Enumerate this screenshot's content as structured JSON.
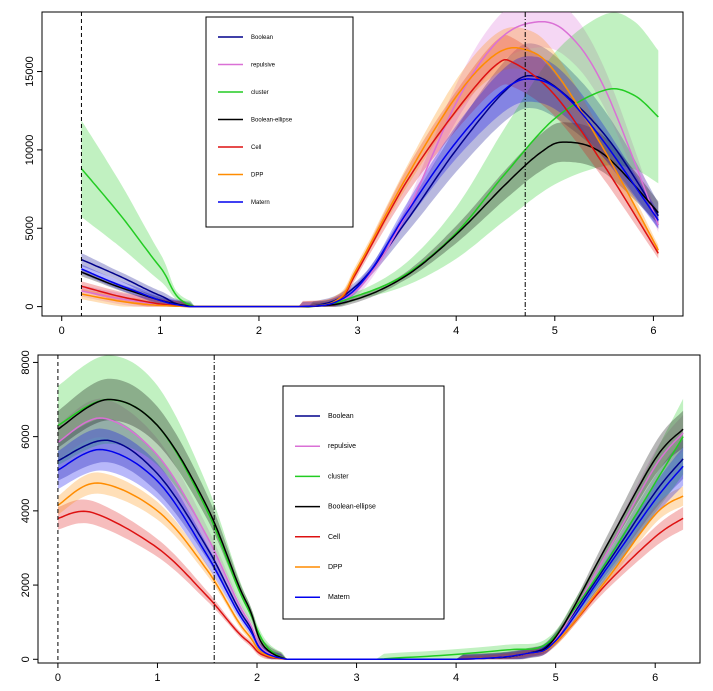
{
  "chart_data": [
    {
      "type": "line",
      "title": "",
      "xlabel": "",
      "ylabel": "",
      "xlim": [
        -0.2,
        6.3
      ],
      "ylim": [
        -600,
        18800
      ],
      "x_ticks": [
        0,
        1,
        2,
        3,
        4,
        5,
        6
      ],
      "x_tick_labels": [
        "0",
        "1",
        "2",
        "3",
        "4",
        "5",
        "6"
      ],
      "y_ticks": [
        0,
        5000,
        10000,
        15000
      ],
      "y_tick_labels": [
        "0",
        "5000",
        "10000",
        "15000"
      ],
      "vlines": [
        {
          "x": 0.2,
          "style": "dashed"
        },
        {
          "x": 4.7,
          "style": "dashdot"
        }
      ],
      "legend": {
        "placement": "top-center"
      },
      "series": [
        {
          "name": "Boolean",
          "color": "#00008B",
          "band": 0.14,
          "points": [
            [
              0.2,
              3000
            ],
            [
              0.6,
              1900
            ],
            [
              1.0,
              700
            ],
            [
              1.35,
              0
            ],
            [
              2.5,
              0
            ],
            [
              3.0,
              1400
            ],
            [
              3.5,
              5500
            ],
            [
              4.0,
              10000
            ],
            [
              4.5,
              13800
            ],
            [
              4.8,
              14700
            ],
            [
              5.2,
              13000
            ],
            [
              5.6,
              10200
            ],
            [
              6.05,
              5800
            ]
          ]
        },
        {
          "name": "repulsive",
          "color": "#DA70D6",
          "band": 0.09,
          "points": [
            [
              0.2,
              1000
            ],
            [
              0.7,
              400
            ],
            [
              1.3,
              0
            ],
            [
              2.4,
              0
            ],
            [
              2.8,
              300
            ],
            [
              3.1,
              1800
            ],
            [
              3.5,
              6000
            ],
            [
              4.0,
              13000
            ],
            [
              4.4,
              16800
            ],
            [
              4.75,
              18100
            ],
            [
              5.1,
              17600
            ],
            [
              5.5,
              14000
            ],
            [
              6.05,
              5200
            ]
          ]
        },
        {
          "name": "cluster",
          "color": "#22CC22",
          "band": 0.35,
          "points": [
            [
              0.2,
              8800
            ],
            [
              0.6,
              5800
            ],
            [
              1.0,
              2500
            ],
            [
              1.35,
              0
            ],
            [
              2.5,
              0
            ],
            [
              3.0,
              700
            ],
            [
              3.5,
              2100
            ],
            [
              4.0,
              4700
            ],
            [
              4.5,
              8500
            ],
            [
              5.0,
              12000
            ],
            [
              5.5,
              13800
            ],
            [
              5.8,
              13500
            ],
            [
              6.05,
              12100
            ]
          ]
        },
        {
          "name": "Boolean-ellipse",
          "color": "#000000",
          "band": 0.12,
          "points": [
            [
              0.2,
              2200
            ],
            [
              0.7,
              1000
            ],
            [
              1.35,
              0
            ],
            [
              2.5,
              0
            ],
            [
              3.0,
              500
            ],
            [
              3.5,
              2000
            ],
            [
              4.0,
              4600
            ],
            [
              4.5,
              7800
            ],
            [
              4.85,
              9800
            ],
            [
              5.1,
              10500
            ],
            [
              5.5,
              9700
            ],
            [
              6.05,
              6000
            ]
          ]
        },
        {
          "name": "Cell",
          "color": "#DD1111",
          "band": 0.1,
          "points": [
            [
              0.2,
              1300
            ],
            [
              0.7,
              500
            ],
            [
              1.3,
              0
            ],
            [
              2.4,
              0
            ],
            [
              2.8,
              400
            ],
            [
              3.0,
              2300
            ],
            [
              3.5,
              8000
            ],
            [
              4.0,
              12500
            ],
            [
              4.4,
              15400
            ],
            [
              4.6,
              15500
            ],
            [
              5.0,
              13500
            ],
            [
              5.5,
              9000
            ],
            [
              6.05,
              3400
            ]
          ]
        },
        {
          "name": "DPP",
          "color": "#FF8C00",
          "band": 0.08,
          "points": [
            [
              0.2,
              800
            ],
            [
              0.7,
              250
            ],
            [
              1.3,
              0
            ],
            [
              2.4,
              0
            ],
            [
              2.8,
              450
            ],
            [
              3.0,
              2500
            ],
            [
              3.5,
              8300
            ],
            [
              4.0,
              13400
            ],
            [
              4.4,
              16100
            ],
            [
              4.7,
              16400
            ],
            [
              5.0,
              15000
            ],
            [
              5.5,
              10000
            ],
            [
              6.05,
              3600
            ]
          ]
        },
        {
          "name": "Matern",
          "color": "#0000EE",
          "band": 0.1,
          "points": [
            [
              0.2,
              2400
            ],
            [
              0.7,
              1100
            ],
            [
              1.3,
              0
            ],
            [
              2.4,
              0
            ],
            [
              2.8,
              350
            ],
            [
              3.1,
              2000
            ],
            [
              3.5,
              6000
            ],
            [
              4.0,
              10500
            ],
            [
              4.5,
              13900
            ],
            [
              4.8,
              14500
            ],
            [
              5.1,
              13500
            ],
            [
              5.5,
              10500
            ],
            [
              6.05,
              5500
            ]
          ]
        }
      ]
    },
    {
      "type": "line",
      "title": "",
      "xlabel": "",
      "ylabel": "",
      "xlim": [
        -0.2,
        6.45
      ],
      "ylim": [
        -100,
        8200
      ],
      "x_ticks": [
        0,
        1,
        2,
        3,
        4,
        5,
        6
      ],
      "x_tick_labels": [
        "0",
        "1",
        "2",
        "3",
        "4",
        "5",
        "6"
      ],
      "y_ticks": [
        0,
        2000,
        4000,
        6000,
        8000
      ],
      "y_tick_labels": [
        "0",
        "2000",
        "4000",
        "6000",
        "8000"
      ],
      "vlines": [
        {
          "x": 0.0,
          "style": "dashed"
        },
        {
          "x": 1.57,
          "style": "dashdot"
        }
      ],
      "legend": {
        "placement": "top-center"
      },
      "series": [
        {
          "name": "Boolean",
          "color": "#00008B",
          "band": 0.1,
          "points": [
            [
              0,
              5350
            ],
            [
              0.5,
              5900
            ],
            [
              1.0,
              5000
            ],
            [
              1.5,
              3000
            ],
            [
              1.9,
              1000
            ],
            [
              2.3,
              0
            ],
            [
              4.0,
              0
            ],
            [
              4.7,
              150
            ],
            [
              5.0,
              600
            ],
            [
              5.5,
              2500
            ],
            [
              6.0,
              4500
            ],
            [
              6.28,
              5400
            ]
          ]
        },
        {
          "name": "repulsive",
          "color": "#DA70D6",
          "band": 0.08,
          "points": [
            [
              0,
              5850
            ],
            [
              0.45,
              6500
            ],
            [
              1.0,
              5500
            ],
            [
              1.5,
              3300
            ],
            [
              1.9,
              1100
            ],
            [
              2.3,
              0
            ],
            [
              4.0,
              0
            ],
            [
              4.7,
              150
            ],
            [
              5.0,
              550
            ],
            [
              5.5,
              2800
            ],
            [
              6.0,
              5200
            ],
            [
              6.28,
              6100
            ]
          ]
        },
        {
          "name": "cluster",
          "color": "#22CC22",
          "band": 0.17,
          "points": [
            [
              0,
              6300
            ],
            [
              0.5,
              7000
            ],
            [
              1.0,
              6300
            ],
            [
              1.5,
              4000
            ],
            [
              1.9,
              1400
            ],
            [
              2.3,
              0
            ],
            [
              3.5,
              50
            ],
            [
              4.5,
              250
            ],
            [
              4.9,
              400
            ],
            [
              5.2,
              1400
            ],
            [
              5.6,
              3000
            ],
            [
              6.28,
              6000
            ]
          ]
        },
        {
          "name": "Boolean-ellipse",
          "color": "#000000",
          "band": 0.08,
          "points": [
            [
              0,
              6200
            ],
            [
              0.5,
              7000
            ],
            [
              1.0,
              6300
            ],
            [
              1.5,
              4100
            ],
            [
              1.9,
              1500
            ],
            [
              2.3,
              0
            ],
            [
              4.0,
              0
            ],
            [
              4.7,
              150
            ],
            [
              5.0,
              600
            ],
            [
              5.5,
              3000
            ],
            [
              6.0,
              5400
            ],
            [
              6.28,
              6200
            ]
          ]
        },
        {
          "name": "Cell",
          "color": "#DD1111",
          "band": 0.08,
          "points": [
            [
              0,
              3800
            ],
            [
              0.35,
              3950
            ],
            [
              1.0,
              3000
            ],
            [
              1.5,
              1700
            ],
            [
              1.9,
              500
            ],
            [
              2.3,
              0
            ],
            [
              4.0,
              0
            ],
            [
              4.7,
              150
            ],
            [
              5.0,
              450
            ],
            [
              5.5,
              2000
            ],
            [
              6.0,
              3300
            ],
            [
              6.28,
              3800
            ]
          ]
        },
        {
          "name": "DPP",
          "color": "#FF8C00",
          "band": 0.06,
          "points": [
            [
              0,
              4150
            ],
            [
              0.4,
              4750
            ],
            [
              1.0,
              4000
            ],
            [
              1.5,
              2400
            ],
            [
              1.9,
              700
            ],
            [
              2.3,
              0
            ],
            [
              4.0,
              0
            ],
            [
              4.7,
              150
            ],
            [
              5.0,
              450
            ],
            [
              5.5,
              2100
            ],
            [
              6.0,
              3900
            ],
            [
              6.28,
              4400
            ]
          ]
        },
        {
          "name": "Matern",
          "color": "#0000EE",
          "band": 0.1,
          "points": [
            [
              0,
              5100
            ],
            [
              0.45,
              5650
            ],
            [
              1.0,
              4800
            ],
            [
              1.5,
              2800
            ],
            [
              1.9,
              900
            ],
            [
              2.3,
              0
            ],
            [
              4.0,
              0
            ],
            [
              4.7,
              150
            ],
            [
              5.0,
              500
            ],
            [
              5.5,
              2400
            ],
            [
              6.0,
              4300
            ],
            [
              6.28,
              5200
            ]
          ]
        }
      ]
    }
  ]
}
